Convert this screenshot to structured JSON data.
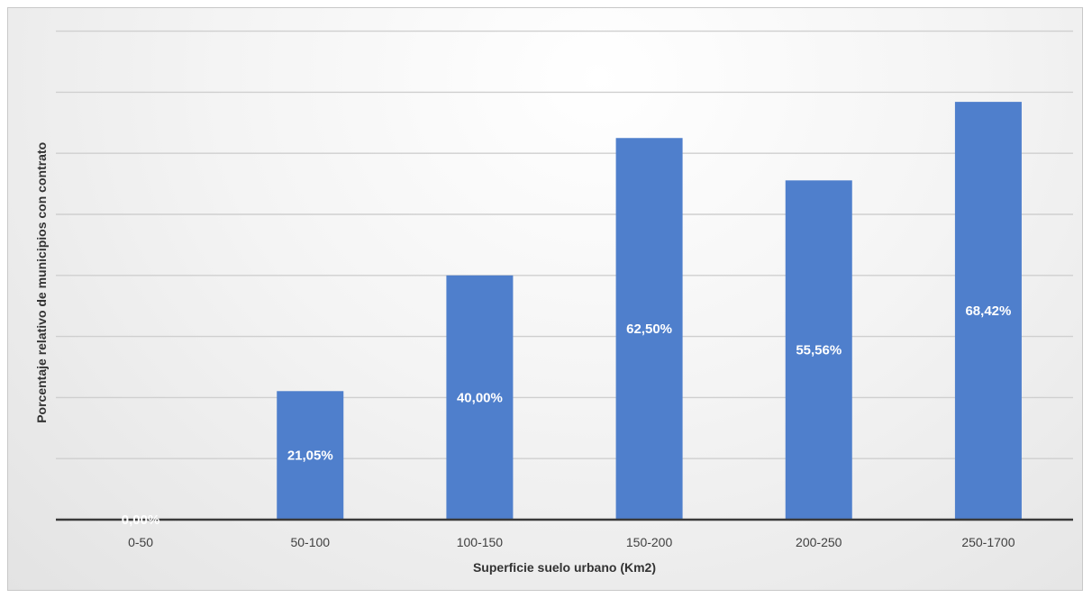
{
  "chart_data": {
    "type": "bar",
    "title": "",
    "xlabel": "Superficie suelo urbano (Km2)",
    "ylabel": "Porcentaje relativo de municipios con contrato",
    "categories": [
      "0-50",
      "50-100",
      "100-150",
      "150-200",
      "200-250",
      "250-1700"
    ],
    "values": [
      0.0,
      21.05,
      40.0,
      62.5,
      55.56,
      68.42
    ],
    "data_labels": [
      "0,00%",
      "21,05%",
      "40,00%",
      "62,50%",
      "55,56%",
      "68,42%"
    ],
    "ylim": [
      0,
      80
    ],
    "y_gridlines": [
      10,
      20,
      30,
      40,
      50,
      60,
      70,
      80
    ],
    "y_tick_labels_shown": false,
    "grid": true,
    "legend": "none",
    "bar_color": "#4f7fcc",
    "label_color": "#ffffff"
  }
}
